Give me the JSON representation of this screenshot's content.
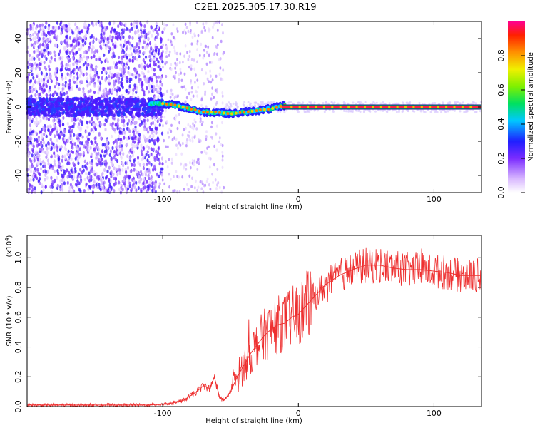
{
  "title": "C2E1.2025.305.17.30.R19",
  "chart_data": [
    {
      "type": "heatmap",
      "name": "spectrogram",
      "xlabel": "Height of straight line (km)",
      "ylabel": "Frequency (Hz)",
      "xlim": [
        -200,
        135
      ],
      "ylim": [
        -50,
        50
      ],
      "xticks": [
        -100,
        0,
        100
      ],
      "yticks": [
        -40,
        -20,
        0,
        20,
        40
      ],
      "signal_track": [
        {
          "x": -110,
          "y": 2
        },
        {
          "x": -100,
          "y": 2
        },
        {
          "x": -90,
          "y": 1
        },
        {
          "x": -80,
          "y": -1
        },
        {
          "x": -70,
          "y": -3
        },
        {
          "x": -60,
          "y": -3
        },
        {
          "x": -50,
          "y": -4
        },
        {
          "x": -40,
          "y": -3
        },
        {
          "x": -30,
          "y": -2
        },
        {
          "x": -20,
          "y": -1
        },
        {
          "x": -10,
          "y": 1
        },
        {
          "x": 0,
          "y": 0
        },
        {
          "x": 50,
          "y": 0
        },
        {
          "x": 100,
          "y": 0
        },
        {
          "x": 135,
          "y": 0
        }
      ],
      "colorbar": {
        "label": "Normalized spectral amplitude",
        "range": [
          0,
          1
        ],
        "ticks": [
          "0.0",
          "0.2",
          "0.4",
          "0.6",
          "0.8"
        ]
      }
    },
    {
      "type": "line",
      "name": "snr",
      "xlabel": "Height of straight line (km)",
      "ylabel": "SNR (10 * v/v)",
      "yscale_label": "(x10",
      "yscale_exp": "4",
      "xlim": [
        -200,
        135
      ],
      "ylim": [
        0,
        1.15
      ],
      "xticks": [
        -100,
        0,
        100
      ],
      "yticks": [
        "0.0",
        "0.2",
        "0.4",
        "0.6",
        "0.8",
        "1.0"
      ],
      "series": [
        {
          "name": "SNR",
          "color": "#ee3030",
          "x": [
            -200,
            -150,
            -110,
            -95,
            -85,
            -75,
            -70,
            -65,
            -62,
            -58,
            -55,
            -50,
            -45,
            -40,
            -35,
            -30,
            -25,
            -20,
            -15,
            -10,
            -5,
            0,
            10,
            20,
            30,
            40,
            50,
            60,
            70,
            80,
            90,
            100,
            110,
            120,
            135
          ],
          "y": [
            0.01,
            0.01,
            0.01,
            0.02,
            0.04,
            0.1,
            0.14,
            0.12,
            0.2,
            0.06,
            0.04,
            0.1,
            0.2,
            0.28,
            0.36,
            0.42,
            0.48,
            0.52,
            0.55,
            0.56,
            0.6,
            0.62,
            0.72,
            0.82,
            0.88,
            0.92,
            0.95,
            0.95,
            0.93,
            0.92,
            0.92,
            0.91,
            0.9,
            0.88,
            0.88
          ]
        }
      ]
    }
  ],
  "colors": {
    "series": "#ee3030",
    "axis": "#000000"
  }
}
